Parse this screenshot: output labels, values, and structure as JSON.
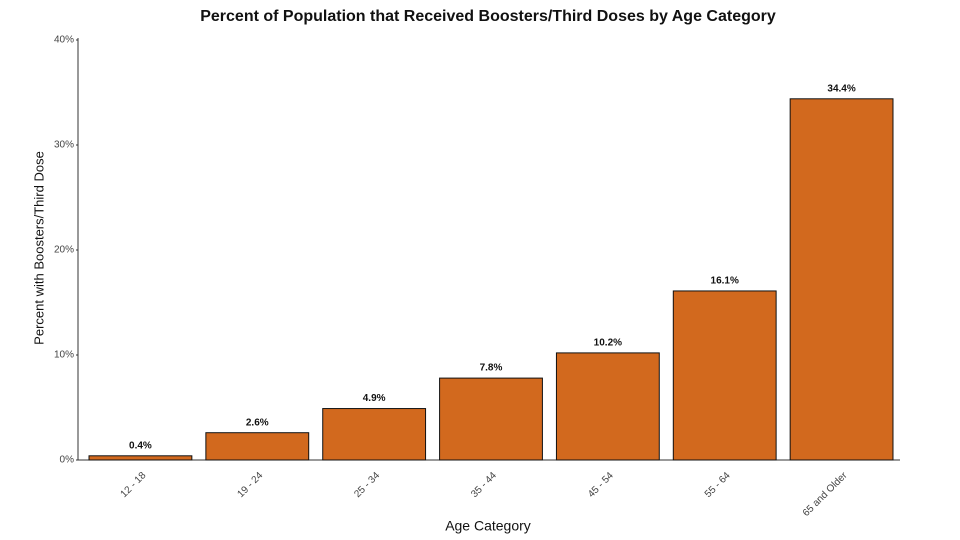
{
  "chart_data": {
    "type": "bar",
    "title": "Percent of Population that Received Boosters/Third Doses by Age Category",
    "x_label": "Age Category",
    "y_label": "Percent with Boosters/Third Dose",
    "categories": [
      "12 - 18",
      "19 - 24",
      "25 - 34",
      "35 - 44",
      "45 - 54",
      "55 - 64",
      "65 and Older"
    ],
    "values": [
      0.4,
      2.6,
      4.9,
      7.8,
      10.2,
      16.1,
      34.4
    ],
    "value_labels": [
      "0.4%",
      "2.6%",
      "4.9%",
      "7.8%",
      "10.2%",
      "16.1%",
      "34.4%"
    ],
    "color": "#d2691e",
    "ylim": [
      0,
      40
    ],
    "yticks": [
      {
        "value": 0,
        "label": "0%"
      },
      {
        "value": 10,
        "label": "10%"
      },
      {
        "value": 20,
        "label": "20%"
      },
      {
        "value": 30,
        "label": "30%"
      },
      {
        "value": 40,
        "label": "40%"
      }
    ],
    "grid": false
  }
}
